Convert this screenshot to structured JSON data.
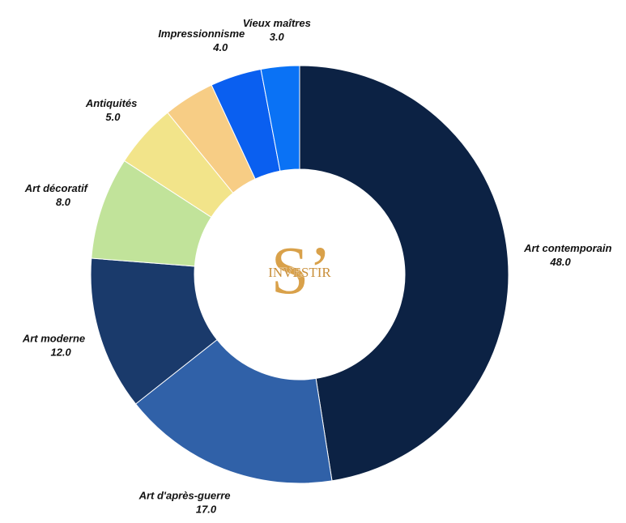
{
  "chart_data": {
    "type": "donut",
    "categories": [
      "Art contemporain",
      "Art d'après-guerre",
      "Art moderne",
      "Art décoratif",
      "Antiquités",
      null,
      "Impressionnisme",
      "Vieux maîtres"
    ],
    "values": [
      48,
      17,
      12,
      8,
      5,
      4,
      4,
      3
    ],
    "value_labels": [
      "48.0",
      "17.0",
      "12.0",
      "8.0",
      "5.0",
      null,
      "4.0",
      "3.0"
    ],
    "colors": [
      "#0c2244",
      "#3061a8",
      "#1a3a6b",
      "#c1e39a",
      "#f2e48a",
      "#f7cd85",
      "#0a5ff0",
      "#0a72f5"
    ],
    "logo": {
      "mark": "S’",
      "text": "INVESTIR"
    }
  }
}
